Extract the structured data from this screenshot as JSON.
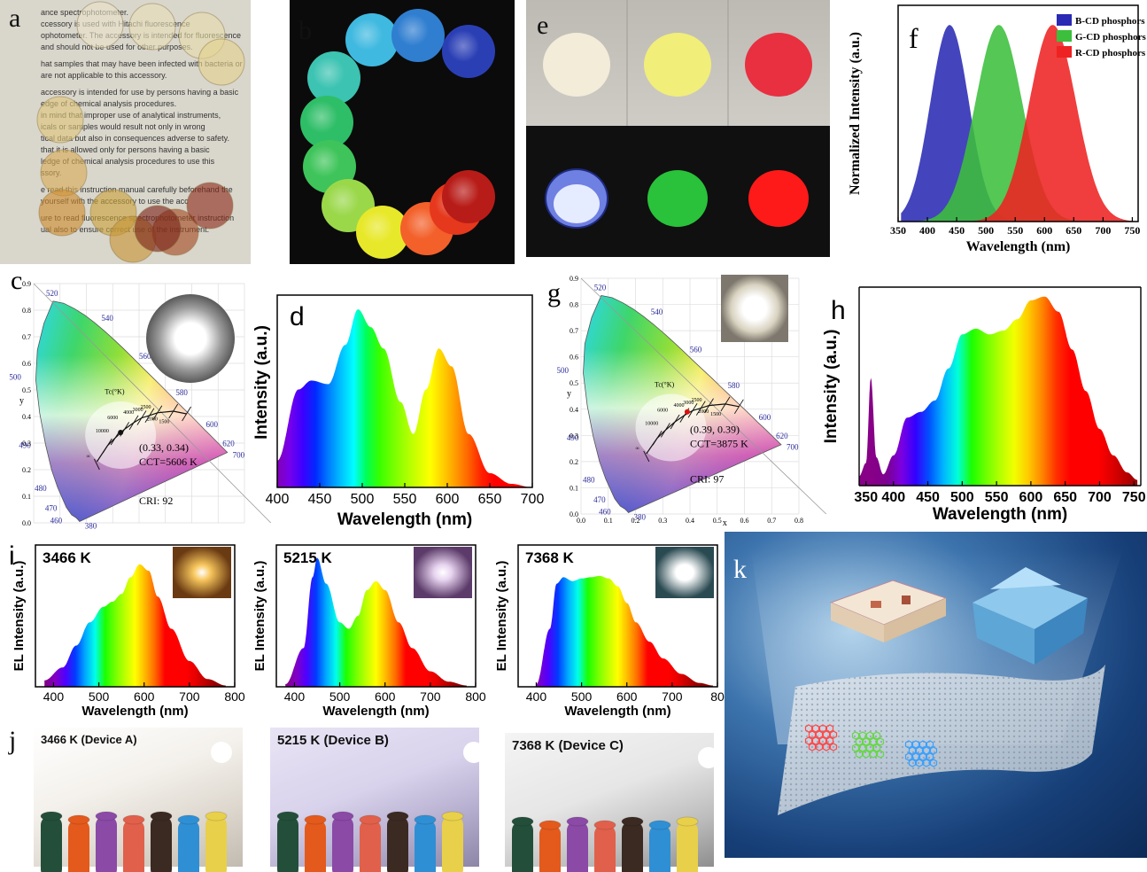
{
  "panel_labels": {
    "a": "a",
    "b": "b",
    "c": "c",
    "d": "d",
    "e": "e",
    "f": "f",
    "g": "g",
    "h": "h",
    "i": "i",
    "j": "j",
    "k": "k"
  },
  "panel_a": {
    "document_lines": [
      "ance spectrophotometer.",
      "ccessory is used with Hitachi fluorescence",
      "ophotometer. The accessory is intended for fluorescence",
      "and should not be used for other purposes.",
      "hat samples that may have been infected with bacteria or",
      "are not applicable to this accessory.",
      "accessory is intended for use by persons having a basic",
      "edge of chemical analysis procedures.",
      "in mind that improper use of analytical instruments,",
      "icals or samples would result not only in wrong",
      "tical data but also in consequences adverse to safety.",
      "that it is allowed only for persons having a basic",
      "ledge of chemical analysis procedures to use this",
      "ssory.",
      "e read this instruction manual carefully beforehand the",
      "yourself with the accessory to use the acc",
      "ure to read fluorescence spectrophotometer instruction",
      "ual also to ensure correct use of the instrument."
    ]
  },
  "panel_e": {
    "daylight_colors": [
      "#f2ecd8",
      "#f1ee7a",
      "#e83040"
    ],
    "uv_colors": [
      "#d8e0ff",
      "#29c23a",
      "#ff1a1a"
    ]
  },
  "panel_c": {
    "wavelength_ticks": [
      "520",
      "540",
      "560",
      "580",
      "600",
      "620",
      "700",
      "500",
      "490",
      "480",
      "470",
      "460",
      "380"
    ],
    "y_ticks": [
      "0.9",
      "0.8",
      "0.7",
      "0.6",
      "0.5",
      "0.4",
      "0.3",
      "0.2",
      "0.1",
      "0.0"
    ],
    "y_axis": "y",
    "tc_label": "Tc(°K)",
    "coordinate": "(0.33, 0.34)",
    "cct": "CCT=5606 K",
    "cri": "CRI: 92",
    "locus_ticks": [
      "10000",
      "6000",
      "4000",
      "3000",
      "2500",
      "2000",
      "1500",
      "∞"
    ]
  },
  "panel_g": {
    "wavelength_ticks": [
      "520",
      "540",
      "560",
      "580",
      "600",
      "620",
      "700",
      "500",
      "490",
      "480",
      "470",
      "460",
      "380"
    ],
    "y_ticks": [
      "0.9",
      "0.8",
      "0.7",
      "0.6",
      "0.5",
      "0.4",
      "0.3",
      "0.2",
      "0.1",
      "0.0"
    ],
    "x_ticks": [
      "0.0",
      "0.1",
      "0.2",
      "0.3",
      "0.4",
      "0.5",
      "0.6",
      "0.7",
      "0.8"
    ],
    "x_axis": "x",
    "y_axis": "y",
    "tc_label": "Tc(°K)",
    "coordinate": "(0.39, 0.39)",
    "cct": "CCT=3875 K",
    "cri": "CRI: 97",
    "locus_ticks": [
      "10000",
      "6000",
      "4000",
      "3000",
      "2500",
      "2000",
      "1500",
      "∞"
    ]
  },
  "panel_d": {
    "xlabel": "Wavelength (nm)",
    "ylabel": "Intensity (a.u.)",
    "x_ticks": [
      "400",
      "450",
      "500",
      "550",
      "600",
      "650",
      "700"
    ]
  },
  "panel_f": {
    "xlabel": "Wavelength (nm)",
    "ylabel": "Normalized Intensity (a.u.)",
    "x_ticks": [
      "350",
      "400",
      "450",
      "500",
      "550",
      "600",
      "650",
      "700",
      "750"
    ],
    "legend": [
      {
        "label": "B-CD phosphors",
        "color": "#2a2ab4"
      },
      {
        "label": "G-CD phosphors",
        "color": "#3cbf3c"
      },
      {
        "label": "R-CD phosphors",
        "color": "#ee2222"
      }
    ]
  },
  "panel_h": {
    "xlabel": "Wavelength (nm)",
    "ylabel": "Intensity (a.u.)",
    "x_ticks": [
      "350",
      "400",
      "450",
      "500",
      "550",
      "600",
      "650",
      "700",
      "750"
    ]
  },
  "panel_i": [
    {
      "title": "3466 K",
      "xlabel": "Wavelength (nm)",
      "ylabel": "EL Intensity (a.u.)",
      "x_ticks": [
        "400",
        "500",
        "600",
        "700",
        "800"
      ]
    },
    {
      "title": "5215 K",
      "xlabel": "Wavelength (nm)",
      "ylabel": "EL Intensity (a.u.)",
      "x_ticks": [
        "400",
        "500",
        "600",
        "700",
        "800"
      ]
    },
    {
      "title": "7368 K",
      "xlabel": "Wavelength (nm)",
      "ylabel": "EL Intensity (a.u.)",
      "x_ticks": [
        "400",
        "500",
        "600",
        "700",
        "80"
      ]
    }
  ],
  "panel_j": [
    {
      "label": "3466 K (Device A)"
    },
    {
      "label": "5215 K (Device B)"
    },
    {
      "label": "7368 K (Device C)"
    }
  ],
  "chart_data": [
    {
      "type": "area",
      "id": "d",
      "x": [
        400,
        425,
        440,
        460,
        480,
        495,
        510,
        525,
        545,
        560,
        575,
        590,
        605,
        625,
        650,
        675,
        700
      ],
      "values": [
        0.15,
        0.55,
        0.6,
        0.58,
        0.8,
        1.0,
        0.9,
        0.78,
        0.48,
        0.3,
        0.55,
        0.78,
        0.68,
        0.3,
        0.08,
        0.02,
        0.0
      ],
      "xlim": [
        400,
        700
      ],
      "ylim": [
        0,
        1.08
      ]
    },
    {
      "type": "area",
      "id": "f",
      "series": [
        {
          "name": "B-CD phosphors",
          "color": "#2a2ab4",
          "peak": 438,
          "width": 33
        },
        {
          "name": "G-CD phosphors",
          "color": "#3cbf3c",
          "peak": 522,
          "width": 40
        },
        {
          "name": "R-CD phosphors",
          "color": "#ee2222",
          "peak": 614,
          "width": 40
        }
      ],
      "xlim": [
        350,
        760
      ],
      "ylim": [
        0,
        1.1
      ]
    },
    {
      "type": "area",
      "id": "h",
      "x": [
        350,
        360,
        367,
        375,
        385,
        400,
        420,
        440,
        460,
        480,
        500,
        520,
        540,
        560,
        580,
        600,
        620,
        640,
        660,
        680,
        700,
        720,
        740,
        755
      ],
      "values": [
        0.05,
        0.12,
        0.57,
        0.15,
        0.06,
        0.16,
        0.36,
        0.39,
        0.45,
        0.62,
        0.8,
        0.83,
        0.8,
        0.82,
        0.88,
        0.98,
        1.0,
        0.92,
        0.72,
        0.5,
        0.3,
        0.16,
        0.07,
        0.03
      ],
      "xlim": [
        350,
        760
      ],
      "ylim": [
        0,
        1.05
      ]
    },
    {
      "type": "area",
      "id": "i1",
      "x": [
        380,
        420,
        450,
        480,
        510,
        530,
        550,
        570,
        590,
        610,
        630,
        660,
        700,
        740,
        780
      ],
      "values": [
        0.05,
        0.15,
        0.32,
        0.5,
        0.62,
        0.66,
        0.72,
        0.85,
        0.95,
        0.9,
        0.7,
        0.45,
        0.2,
        0.06,
        0.01
      ],
      "xlim": [
        360,
        800
      ],
      "ylim": [
        0,
        1.1
      ]
    },
    {
      "type": "area",
      "id": "i2",
      "x": [
        380,
        420,
        440,
        450,
        470,
        500,
        520,
        540,
        560,
        580,
        600,
        630,
        660,
        700,
        740,
        780
      ],
      "values": [
        0.02,
        0.3,
        0.85,
        1.0,
        0.8,
        0.5,
        0.45,
        0.55,
        0.75,
        0.82,
        0.75,
        0.5,
        0.3,
        0.12,
        0.04,
        0.01
      ],
      "xlim": [
        360,
        800
      ],
      "ylim": [
        0,
        1.1
      ]
    },
    {
      "type": "area",
      "id": "i3",
      "x": [
        400,
        430,
        445,
        460,
        480,
        500,
        520,
        540,
        560,
        580,
        600,
        620,
        650,
        680,
        720,
        760,
        790
      ],
      "values": [
        0.02,
        0.45,
        0.8,
        0.85,
        0.82,
        0.84,
        0.85,
        0.86,
        0.84,
        0.78,
        0.65,
        0.5,
        0.35,
        0.22,
        0.1,
        0.03,
        0.01
      ],
      "xlim": [
        360,
        800
      ],
      "ylim": [
        0,
        1.1
      ]
    }
  ]
}
